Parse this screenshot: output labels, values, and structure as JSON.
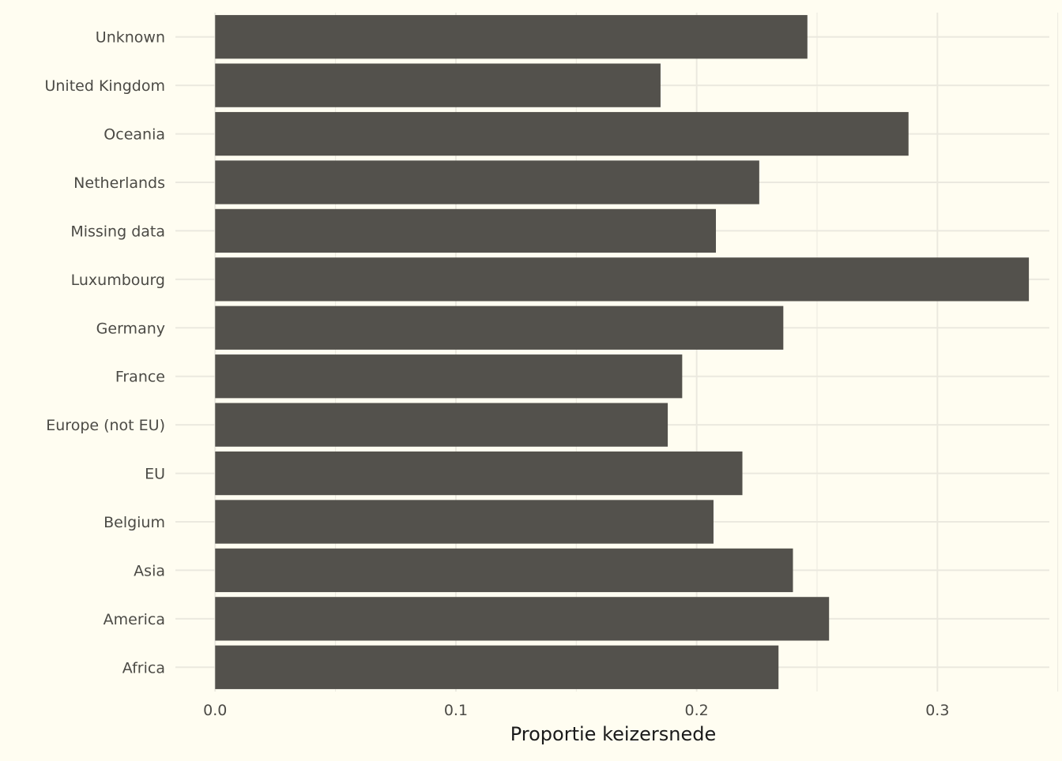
{
  "chart_data": {
    "type": "bar",
    "orientation": "horizontal",
    "categories": [
      "Unknown",
      "United Kingdom",
      "Oceania",
      "Netherlands",
      "Missing data",
      "Luxumbourg",
      "Germany",
      "France",
      "Europe (not EU)",
      "EU",
      "Belgium",
      "Asia",
      "America",
      "Africa"
    ],
    "values": [
      0.246,
      0.185,
      0.288,
      0.226,
      0.208,
      0.338,
      0.236,
      0.194,
      0.188,
      0.219,
      0.207,
      0.24,
      0.255,
      0.234
    ],
    "xlabel": "Proportie keizersnede",
    "ylabel": "",
    "xlim": [
      -0.0165,
      0.3465
    ],
    "xticks": [
      {
        "value": 0.0,
        "label": "0.0"
      },
      {
        "value": 0.1,
        "label": "0.1"
      },
      {
        "value": 0.2,
        "label": "0.2"
      },
      {
        "value": 0.3,
        "label": "0.3"
      }
    ],
    "minor_gridlines": [
      0.05,
      0.15,
      0.25,
      0.35
    ],
    "grid": true,
    "legend": "none",
    "colors": {
      "background": "#fffdf1",
      "bar": "#53514c",
      "grid": "#ebe9df",
      "text": "#4b4a45",
      "title": "#1a1a1a"
    }
  }
}
